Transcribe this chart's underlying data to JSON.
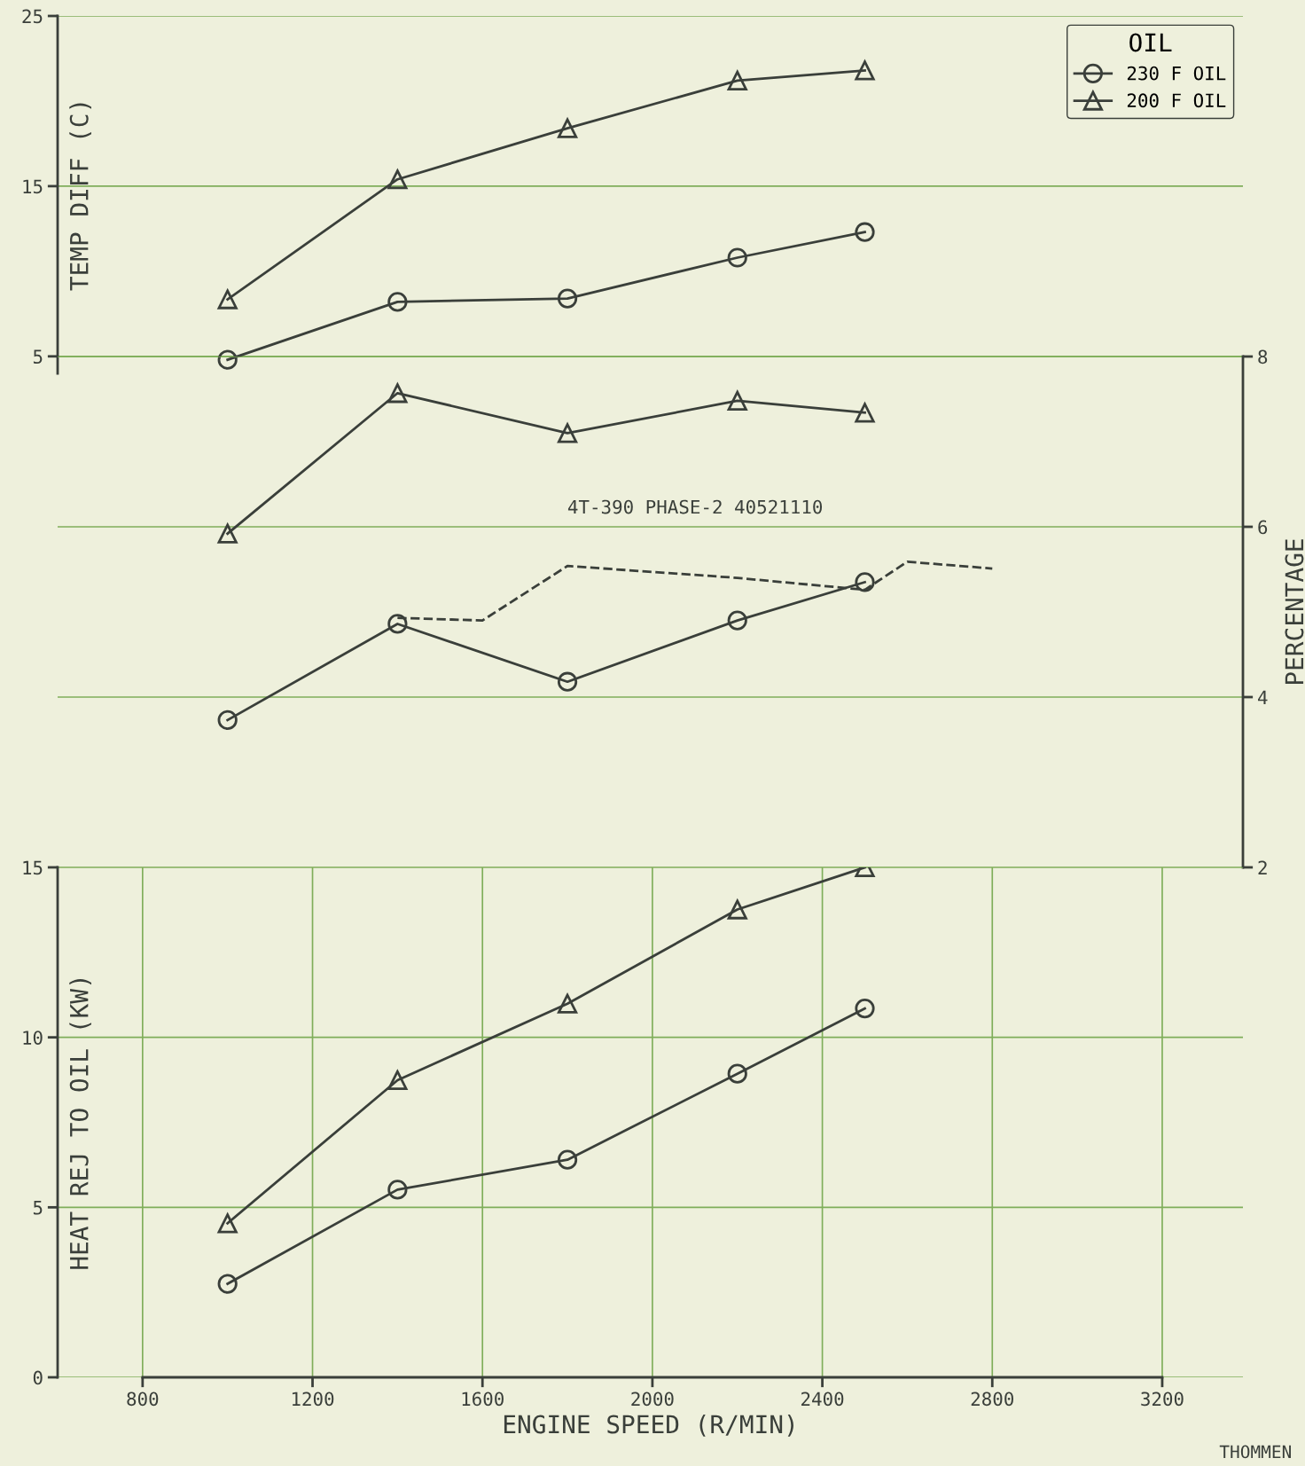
{
  "chart_data": [
    {
      "type": "line",
      "ylabel": "TEMP DIFF (C)",
      "legend_title": "OIL",
      "legend": "top right",
      "grid": true,
      "x": [
        1000,
        1400,
        1800,
        2200,
        2500
      ],
      "xlim": [
        600,
        3390
      ],
      "ylim": [
        4,
        25
      ],
      "yticks": [
        5,
        15,
        25
      ],
      "series": [
        {
          "name": "230 F OIL",
          "color": "#3a3f3a",
          "marker": "circle",
          "values": [
            4.8,
            8.2,
            8.4,
            10.8,
            12.3
          ]
        },
        {
          "name": "200 F OIL",
          "color": "#3a3f3a",
          "marker": "triangle",
          "values": [
            8.35,
            15.4,
            18.4,
            21.2,
            21.8
          ]
        }
      ]
    },
    {
      "type": "line",
      "ylabel": "PERCENTAGE",
      "grid": true,
      "x": [
        1000,
        1400,
        1800,
        2200,
        2500
      ],
      "xlim": [
        600,
        3390
      ],
      "ylim": [
        2,
        8
      ],
      "yticks": [
        2,
        4,
        6,
        8
      ],
      "annotations": [
        "4T-390 PHASE-2 40521110"
      ],
      "series": [
        {
          "color": "#3a3f3a",
          "marker": "circle",
          "values": [
            3.73,
            4.86,
            4.18,
            4.9,
            5.35
          ]
        },
        {
          "color": "#3a3f3a",
          "marker": "triangle",
          "values": [
            5.92,
            7.57,
            7.1,
            7.48,
            7.34
          ]
        },
        {
          "color": "#3a3f3a",
          "marker": "none",
          "line_style": "dashed",
          "x": [
            1400,
            1600,
            1800,
            2200,
            2500,
            2600,
            2800
          ],
          "values": [
            4.93,
            4.9,
            5.54,
            5.4,
            5.26,
            5.59,
            5.51
          ]
        }
      ]
    },
    {
      "type": "line",
      "ylabel": "HEAT REJ TO OIL (KW)",
      "xlabel": "ENGINE SPEED (R/MIN)",
      "grid": true,
      "x": [
        1000,
        1400,
        1800,
        2200,
        2500
      ],
      "xlim": [
        600,
        3390
      ],
      "xticks": [
        800,
        1200,
        1600,
        2000,
        2400,
        2800,
        3200
      ],
      "ylim": [
        0,
        15
      ],
      "yticks": [
        0,
        5,
        10,
        15
      ],
      "annotations": [
        "THOMMEN"
      ],
      "series": [
        {
          "color": "#3a3f3a",
          "marker": "circle",
          "values": [
            2.75,
            5.52,
            6.4,
            8.93,
            10.85
          ]
        },
        {
          "color": "#3a3f3a",
          "marker": "triangle",
          "values": [
            4.53,
            8.74,
            10.99,
            13.76,
            15.0
          ]
        }
      ]
    }
  ]
}
